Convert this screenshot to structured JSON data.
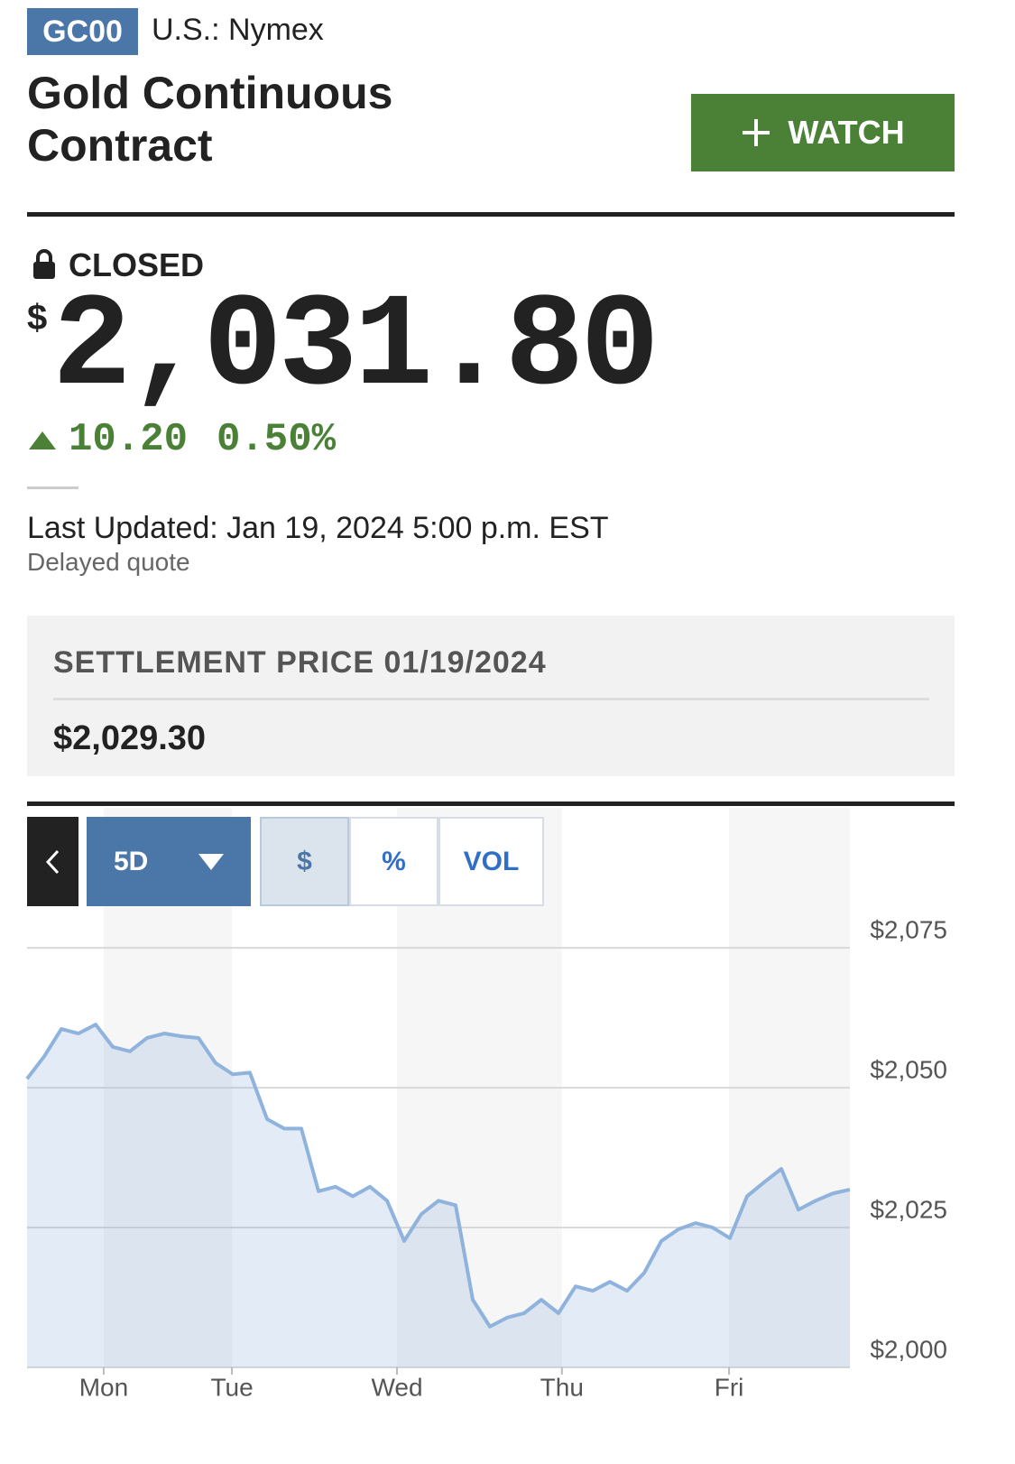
{
  "header": {
    "symbol": "GC00",
    "exchange": "U.S.: Nymex",
    "title": "Gold Continuous Contract",
    "watch_button": "WATCH"
  },
  "quote": {
    "status": "CLOSED",
    "currency": "$",
    "price": "2,031.80",
    "change": "10.20",
    "change_percent": "0.50%",
    "last_updated": "Last Updated: Jan 19, 2024 5:00 p.m. EST",
    "note": "Delayed quote"
  },
  "settlement": {
    "label": "SETTLEMENT PRICE 01/19/2024",
    "value": "$2,029.30"
  },
  "controls": {
    "range": "5D",
    "tabs": [
      "$",
      "%",
      "VOL"
    ]
  },
  "chart_data": {
    "type": "area",
    "x": [
      0,
      1,
      2,
      3,
      4,
      5,
      6,
      7,
      8,
      9,
      10,
      11,
      12,
      13,
      14,
      15,
      16,
      17,
      18,
      19,
      20,
      21,
      22,
      23,
      24,
      25,
      26,
      27,
      28,
      29,
      30,
      31,
      32,
      33,
      34,
      35,
      36,
      37,
      38,
      39,
      40,
      41,
      42,
      43,
      44,
      45,
      46,
      47,
      48
    ],
    "series": [
      {
        "color": "#8fb3dd",
        "values": [
          2051.6,
          2055.6,
          2060.5,
          2059.7,
          2061.3,
          2057.3,
          2056.5,
          2058.9,
          2059.7,
          2059.2,
          2058.9,
          2054.4,
          2052.4,
          2052.7,
          2044.4,
          2042.7,
          2042.7,
          2031.5,
          2032.3,
          2030.6,
          2032.3,
          2029.8,
          2022.6,
          2027.4,
          2029.8,
          2029.0,
          2012.1,
          2007.3,
          2008.9,
          2009.7,
          2012.1,
          2009.7,
          2014.5,
          2013.7,
          2015.3,
          2013.7,
          2016.9,
          2022.6,
          2024.7,
          2025.8,
          2025.0,
          2023.1,
          2030.6,
          2033.1,
          2035.5,
          2028.2,
          2029.8,
          2031.1,
          2031.8
        ]
      }
    ],
    "xlim": [
      0,
      48
    ],
    "xticks": [
      {
        "value": 4.47,
        "label": "Mon"
      },
      {
        "value": 11.95,
        "label": "Tue"
      },
      {
        "value": 21.58,
        "label": "Wed"
      },
      {
        "value": 31.2,
        "label": "Thu"
      },
      {
        "value": 40.95,
        "label": "Fri"
      }
    ],
    "ylim": [
      2000,
      2081
    ],
    "yticks": [
      {
        "value": 2000,
        "label": "$2,000"
      },
      {
        "value": 2025,
        "label": "$2,025"
      },
      {
        "value": 2050,
        "label": "$2,050"
      },
      {
        "value": 2075,
        "label": "$2,075"
      }
    ],
    "grid": true
  }
}
